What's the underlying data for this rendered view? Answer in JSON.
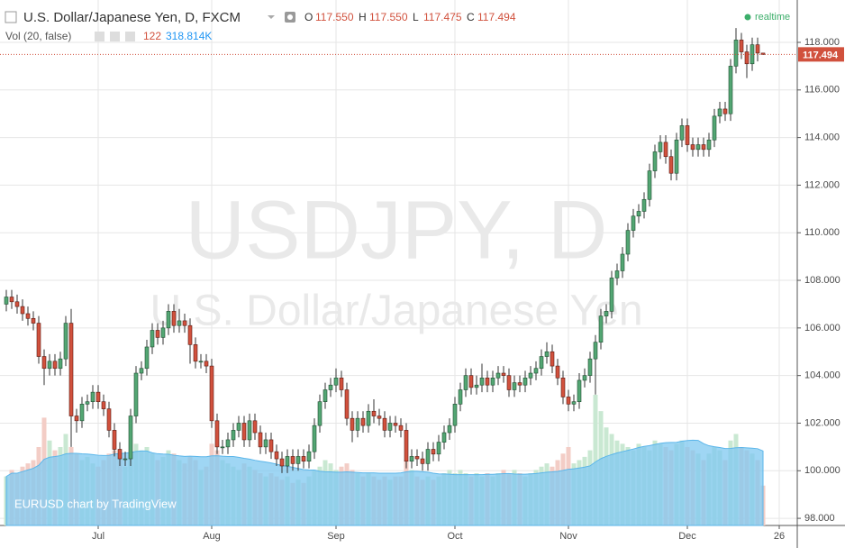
{
  "chart_data": {
    "type": "candlestick",
    "title": "U.S. Dollar/Japanese Yen, D, FXCM",
    "realtime_label": "realtime",
    "watermark": "USDJPY, D",
    "watermark_subtitle": "U.S. Dollar/Japanese Yen",
    "branding": "EURUSD chart by TradingView",
    "ohlc_letters": [
      "O",
      "H",
      "L",
      "C"
    ],
    "ohlc_labels": [
      "117.550",
      "117.550",
      "117.475",
      "117.494"
    ],
    "volume_label": "Vol (20, false)",
    "volume_value_label": "122",
    "volume_ma_label": "318.814K",
    "open": [
      107.0,
      107.3,
      107.1,
      106.9,
      106.6,
      106.4,
      106.2,
      104.8,
      104.3,
      104.6,
      104.3,
      104.7,
      106.2,
      102.3,
      102.1,
      102.8,
      102.9,
      103.3,
      102.9,
      102.6,
      101.7,
      100.9,
      100.5,
      100.5,
      102.3,
      104.1,
      104.3,
      105.2,
      105.9,
      105.6,
      106,
      106.7,
      106.1,
      106.3,
      106.1,
      105.3,
      104.6,
      104.6,
      104.4,
      102.1,
      101,
      101,
      101.3,
      101.7,
      102,
      101.3,
      102.1,
      101.6,
      101,
      101.3,
      100.8,
      100.5,
      100.2,
      100.6,
      100.3,
      100.6,
      100.4,
      100.8,
      101.9,
      102.9,
      103.4,
      103.6,
      103.9,
      103.4,
      102.2,
      101.7,
      102.2,
      101.9,
      102.5,
      102.3,
      102.2,
      101.7,
      102,
      101.9,
      101.7,
      100.4,
      100.6,
      100.5,
      100.3,
      100.9,
      100.7,
      101.2,
      101.6,
      101.9,
      102.8,
      103.4,
      104,
      103.5,
      103.6,
      103.9,
      103.6,
      103.9,
      104.1,
      104,
      103.4,
      103.7,
      103.6,
      103.9,
      104.1,
      104.3,
      104.8,
      105,
      104.4,
      103.9,
      103.1,
      102.8,
      102.9,
      103.8,
      104,
      104.7,
      105.4,
      106.5,
      106.7,
      108.1,
      108.4,
      109.1,
      110.1,
      110.7,
      110.9,
      111.4,
      112.6,
      113.4,
      113.8,
      113.2,
      112.5,
      113.9,
      114.5,
      113.7,
      113.5,
      113.7,
      113.5,
      113.9,
      114.9,
      115.2,
      115,
      117,
      118.1,
      117.6,
      117.1,
      117.9,
      117.55
    ],
    "high": [
      107.6,
      107.6,
      107.4,
      107.2,
      106.9,
      106.7,
      106.5,
      105.1,
      104.9,
      104.9,
      105.0,
      106.5,
      106.8,
      102.6,
      103.1,
      103.2,
      103.6,
      103.6,
      103.2,
      102.9,
      102.0,
      101.2,
      100.8,
      102.6,
      104.4,
      104.6,
      105.5,
      106.2,
      106.2,
      106.3,
      107.0,
      107.0,
      106.8,
      106.6,
      106.4,
      105.6,
      104.9,
      104.9,
      104.7,
      102.4,
      101.3,
      101.6,
      102.0,
      102.3,
      102.3,
      102.4,
      102.4,
      101.9,
      101.6,
      101.6,
      101.1,
      100.8,
      100.9,
      100.9,
      100.9,
      100.9,
      101.1,
      102.2,
      103.2,
      103.7,
      103.9,
      104.3,
      104.2,
      103.7,
      102.5,
      102.5,
      102.5,
      102.8,
      103.0,
      102.6,
      102.5,
      102.3,
      102.3,
      102.2,
      102.0,
      100.9,
      100.9,
      100.8,
      101.2,
      101.2,
      101.5,
      101.9,
      102.2,
      103.1,
      103.7,
      104.3,
      104.3,
      104.0,
      104.5,
      104.2,
      104.2,
      104.4,
      104.4,
      104.3,
      104.0,
      104.0,
      104.2,
      104.4,
      104.6,
      105.1,
      105.4,
      105.3,
      104.7,
      104.2,
      103.4,
      103.2,
      104.1,
      104.3,
      105.0,
      105.7,
      106.8,
      107.0,
      108.4,
      108.7,
      109.4,
      110.4,
      111.0,
      111.2,
      111.7,
      112.9,
      113.7,
      114.1,
      114.1,
      113.5,
      114.2,
      114.8,
      114.8,
      114.0,
      114.0,
      114.0,
      114.2,
      115.2,
      115.5,
      115.5,
      117.3,
      118.6,
      118.4,
      117.9,
      118.2,
      118.2,
      117.55
    ],
    "low": [
      106.7,
      106.8,
      106.6,
      106.3,
      106.1,
      105.9,
      104.5,
      103.6,
      104.0,
      104.0,
      104.0,
      104.4,
      101.0,
      101.6,
      101.8,
      102.5,
      102.6,
      102.6,
      102.3,
      101.4,
      100.6,
      100.2,
      100.2,
      100.2,
      102.0,
      103.8,
      104.0,
      104.9,
      105.3,
      105.3,
      105.7,
      105.8,
      105.8,
      105.8,
      104.5,
      104.3,
      104.3,
      104.1,
      101.8,
      100.7,
      100.7,
      100.7,
      101.0,
      101.4,
      101.0,
      101.0,
      101.3,
      100.7,
      100.7,
      100.5,
      100.2,
      99.9,
      99.9,
      100.0,
      100.0,
      100.1,
      100.1,
      100.5,
      101.6,
      102.6,
      103.1,
      103.3,
      103.1,
      101.9,
      101.2,
      101.4,
      101.6,
      101.6,
      102.0,
      101.9,
      101.4,
      101.4,
      101.6,
      101.4,
      100.1,
      100.1,
      100.2,
      100.0,
      100.0,
      100.4,
      100.4,
      100.9,
      101.3,
      101.6,
      102.5,
      103.1,
      103.2,
      103.2,
      103.3,
      103.3,
      103.3,
      103.6,
      103.7,
      103.1,
      103.1,
      103.3,
      103.3,
      103.6,
      103.8,
      104.0,
      104.5,
      104.1,
      103.6,
      102.8,
      102.5,
      102.5,
      102.6,
      103.5,
      103.7,
      103.2,
      105.1,
      106.2,
      106.4,
      107.8,
      108.1,
      108.8,
      109.8,
      110.4,
      110.6,
      111.1,
      112.3,
      113.1,
      112.9,
      112.2,
      112.2,
      113.6,
      113.4,
      113.2,
      113.2,
      113.2,
      113.2,
      113.6,
      114.6,
      114.7,
      114.7,
      116.7,
      117.3,
      116.5,
      116.8,
      117.2,
      117.475
    ],
    "close": [
      107.3,
      107.1,
      106.9,
      106.6,
      106.4,
      106.2,
      104.8,
      104.3,
      104.6,
      104.3,
      104.7,
      106.2,
      102.3,
      102.1,
      102.8,
      102.9,
      103.3,
      102.9,
      102.6,
      101.7,
      100.9,
      100.5,
      100.5,
      102.3,
      104.1,
      104.3,
      105.2,
      105.9,
      105.6,
      106,
      106.7,
      106.1,
      106.3,
      106.1,
      105.3,
      104.6,
      104.6,
      104.4,
      102.1,
      101,
      101,
      101.3,
      101.7,
      102,
      101.3,
      102.1,
      101.6,
      101,
      101.3,
      100.8,
      100.5,
      100.2,
      100.6,
      100.3,
      100.6,
      100.4,
      100.8,
      101.9,
      102.9,
      103.4,
      103.6,
      103.9,
      103.4,
      102.2,
      101.7,
      102.2,
      101.9,
      102.5,
      102.3,
      102.2,
      101.7,
      102,
      101.9,
      101.7,
      100.4,
      100.6,
      100.5,
      100.3,
      100.9,
      100.7,
      101.2,
      101.6,
      101.9,
      102.8,
      103.4,
      104,
      103.5,
      103.6,
      103.9,
      103.6,
      103.9,
      104.1,
      104,
      103.4,
      103.7,
      103.6,
      103.9,
      104.1,
      104.3,
      104.8,
      105,
      104.4,
      103.9,
      103.1,
      102.8,
      102.9,
      103.8,
      104,
      104.7,
      105.4,
      106.5,
      106.7,
      108.1,
      108.4,
      109.1,
      110.1,
      110.7,
      110.9,
      111.4,
      112.6,
      113.4,
      113.8,
      113.2,
      112.5,
      113.9,
      114.5,
      113.7,
      113.5,
      113.7,
      113.5,
      113.9,
      114.9,
      115.2,
      115,
      117,
      118.1,
      117.6,
      117.1,
      117.9,
      117.55,
      117.494
    ],
    "volume": [
      150,
      170,
      160,
      180,
      190,
      200,
      240,
      330,
      260,
      230,
      240,
      280,
      240,
      220,
      200,
      210,
      190,
      180,
      200,
      220,
      230,
      210,
      180,
      220,
      250,
      230,
      240,
      220,
      200,
      210,
      230,
      220,
      200,
      190,
      210,
      200,
      170,
      180,
      250,
      230,
      200,
      190,
      180,
      170,
      190,
      180,
      170,
      160,
      150,
      160,
      150,
      140,
      150,
      130,
      140,
      130,
      150,
      170,
      180,
      200,
      190,
      170,
      180,
      190,
      170,
      160,
      150,
      160,
      150,
      140,
      150,
      140,
      150,
      150,
      200,
      170,
      150,
      140,
      150,
      140,
      150,
      160,
      170,
      160,
      170,
      160,
      150,
      160,
      150,
      160,
      150,
      160,
      170,
      160,
      170,
      160,
      150,
      160,
      170,
      180,
      190,
      180,
      200,
      220,
      240,
      190,
      200,
      210,
      230,
      400,
      350,
      300,
      280,
      260,
      250,
      240,
      230,
      250,
      240,
      230,
      260,
      250,
      240,
      230,
      250,
      260,
      240,
      230,
      220,
      200,
      220,
      240,
      230,
      200,
      260,
      280,
      240,
      230,
      220,
      200,
      122
    ],
    "xticks": [
      {
        "value": 17,
        "label": "Jul"
      },
      {
        "value": 38,
        "label": "Aug"
      },
      {
        "value": 61,
        "label": "Sep"
      },
      {
        "value": 83,
        "label": "Oct"
      },
      {
        "value": 104,
        "label": "Nov"
      },
      {
        "value": 126,
        "label": "Dec"
      },
      {
        "value": 143,
        "label": "26"
      }
    ],
    "ylim": [
      97.7,
      119.78
    ],
    "yticks": [
      {
        "value": 98,
        "label": "98.000"
      },
      {
        "value": 100,
        "label": "100.000"
      },
      {
        "value": 102,
        "label": "102.000"
      },
      {
        "value": 104,
        "label": "104.000"
      },
      {
        "value": 106,
        "label": "106.000"
      },
      {
        "value": 108,
        "label": "108.000"
      },
      {
        "value": 110,
        "label": "110.000"
      },
      {
        "value": 112,
        "label": "112.000"
      },
      {
        "value": 114,
        "label": "114.000"
      },
      {
        "value": 116,
        "label": "116.000"
      },
      {
        "value": 118,
        "label": "118.000"
      }
    ],
    "grid": true,
    "up_color": "#53a673",
    "down_color": "#d1513d",
    "volume_up_color": "#c9e8d2",
    "volume_down_color": "#f3cdc6",
    "volume_ma_color": "#7fc8f0",
    "price_line_color": "#d1513d"
  }
}
